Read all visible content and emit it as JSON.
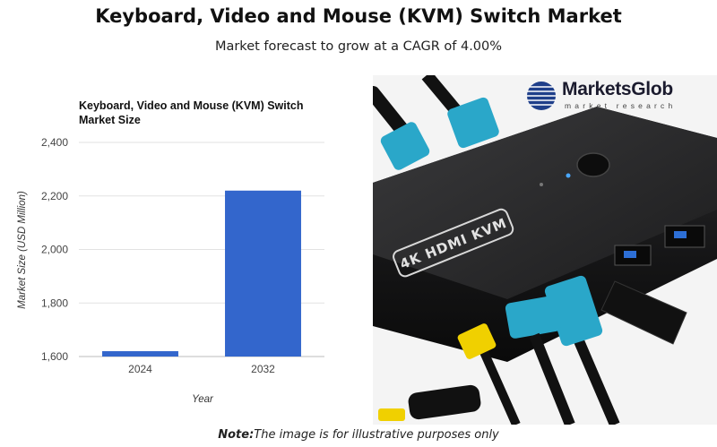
{
  "header": {
    "title": "Keyboard, Video and Mouse (KVM) Switch Market",
    "subtitle": "Market forecast to grow at a CAGR of 4.00%"
  },
  "chart_data": {
    "type": "bar",
    "title": "Keyboard, Video and Mouse (KVM) Switch Market Size",
    "categories": [
      "2024",
      "2032"
    ],
    "values": [
      1620,
      2220
    ],
    "xlabel": "Year",
    "ylabel": "Market Size (USD Million)",
    "ylim": [
      1600,
      2400
    ],
    "yticks": [
      1600,
      1800,
      2000,
      2200,
      2400
    ],
    "ytick_labels": [
      "1,600",
      "1,800",
      "2,000",
      "2,200",
      "2,400"
    ],
    "bar_color": "#3366cc",
    "grid": true,
    "legend": false
  },
  "image": {
    "device_label": "4K HDMI KVM",
    "brand_name": "MarketsGlob",
    "brand_tagline": "market research",
    "device_color": "#1a1a1a",
    "cable_color": "#2aa7c9",
    "accent_cable_color": "#f0d000",
    "icons": [
      "globe-logo-icon"
    ]
  },
  "footer": {
    "note_prefix": "Note:",
    "note_text": "The image is for illustrative purposes only"
  }
}
